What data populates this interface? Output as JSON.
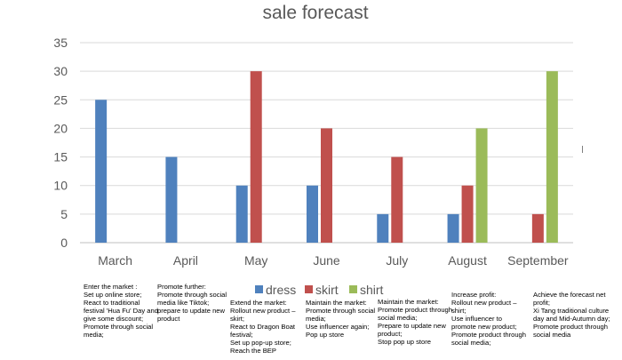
{
  "chart_data": {
    "type": "bar",
    "title": "sale forecast",
    "categories": [
      "March",
      "April",
      "May",
      "June",
      "July",
      "August",
      "September"
    ],
    "series": [
      {
        "name": "dress",
        "color": "#4f81bd",
        "values": [
          25,
          15,
          10,
          10,
          5,
          5,
          0
        ]
      },
      {
        "name": "skirt",
        "color": "#c0504d",
        "values": [
          0,
          0,
          30,
          20,
          15,
          10,
          5
        ]
      },
      {
        "name": "shirt",
        "color": "#9bbb59",
        "values": [
          0,
          0,
          0,
          0,
          0,
          20,
          30
        ]
      }
    ],
    "ylim": [
      0,
      35
    ],
    "yticks": [
      0,
      5,
      10,
      15,
      20,
      25,
      30,
      35
    ],
    "grid": true,
    "legend_position": "bottom",
    "xlabel": "",
    "ylabel": ""
  },
  "notes": [
    "Enter the market :\nSet up online store;\nReact to traditional festival 'Hua Fu' Day and give some discount;\nPromote through social media;",
    "Promote further:\nPromote through social media like Tiktok;\nprepare to update new product",
    "Extend the market:\nRollout new product – skirt;\nReact to Dragon Boat festival;\nSet up pop-up store;\nReach the BEP",
    "Maintain the market:\nPromote through social media;\nUse influencer again;\nPop up store",
    "Maintain the market:\nPromote product through social media;\nPrepare to update new product;\nStop pop up store",
    "Increase profit:\nRollout new product – shirt;\nUse influencer to promote new product;\nPromote product through social media;",
    "Achieve the forecast net profit;\nXi Tang traditional culture day and Mid-Autumn day;\nPromote product through social media"
  ]
}
